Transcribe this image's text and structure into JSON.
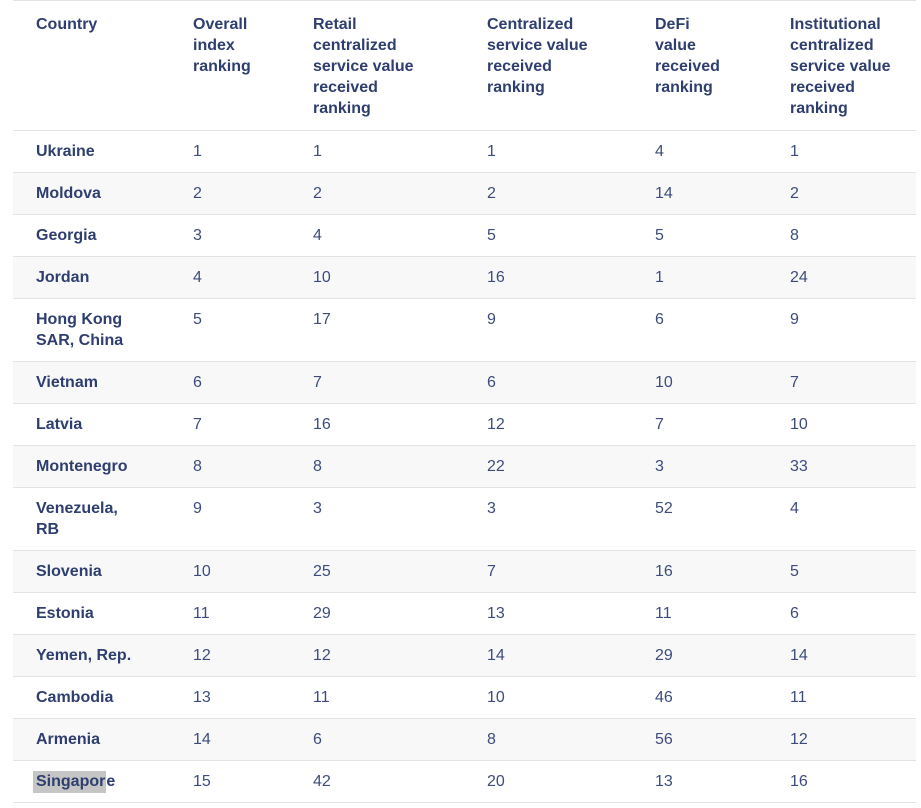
{
  "theme": {
    "text_color": "#2e3e6e",
    "number_color": "#3d4c7c",
    "stripe_color": "#f8f8f9",
    "border_color": "#e3e3e5",
    "highlight_color": "#c5c5c5"
  },
  "table": {
    "columns": [
      {
        "label_lines": [
          "Country"
        ]
      },
      {
        "label_lines": [
          "Overall",
          "index",
          "ranking"
        ]
      },
      {
        "label_lines": [
          "Retail",
          "centralized",
          "service value",
          "received",
          "ranking"
        ]
      },
      {
        "label_lines": [
          "Centralized",
          "service value",
          "received",
          "ranking"
        ]
      },
      {
        "label_lines": [
          "DeFi",
          "value",
          "received",
          "ranking"
        ]
      },
      {
        "label_lines": [
          "Institutional",
          "centralized",
          "service value",
          "received",
          "ranking"
        ]
      }
    ],
    "rows": [
      {
        "country_lines": [
          "Ukraine"
        ],
        "values": [
          1,
          1,
          1,
          4,
          1
        ]
      },
      {
        "country_lines": [
          "Moldova"
        ],
        "values": [
          2,
          2,
          2,
          14,
          2
        ]
      },
      {
        "country_lines": [
          "Georgia"
        ],
        "values": [
          3,
          4,
          5,
          5,
          8
        ]
      },
      {
        "country_lines": [
          "Jordan"
        ],
        "values": [
          4,
          10,
          16,
          1,
          24
        ]
      },
      {
        "country_lines": [
          "Hong Kong",
          "SAR, China"
        ],
        "values": [
          5,
          17,
          9,
          6,
          9
        ]
      },
      {
        "country_lines": [
          "Vietnam"
        ],
        "values": [
          6,
          7,
          6,
          10,
          7
        ]
      },
      {
        "country_lines": [
          "Latvia"
        ],
        "values": [
          7,
          16,
          12,
          7,
          10
        ]
      },
      {
        "country_lines": [
          "Montenegro"
        ],
        "values": [
          8,
          8,
          22,
          3,
          33
        ]
      },
      {
        "country_lines": [
          "Venezuela,",
          "RB"
        ],
        "values": [
          9,
          3,
          3,
          52,
          4
        ]
      },
      {
        "country_lines": [
          "Slovenia"
        ],
        "values": [
          10,
          25,
          7,
          16,
          5
        ]
      },
      {
        "country_lines": [
          "Estonia"
        ],
        "values": [
          11,
          29,
          13,
          11,
          6
        ]
      },
      {
        "country_lines": [
          "Yemen, Rep."
        ],
        "values": [
          12,
          12,
          14,
          29,
          14
        ]
      },
      {
        "country_lines": [
          "Cambodia"
        ],
        "values": [
          13,
          11,
          10,
          46,
          11
        ]
      },
      {
        "country_lines": [
          "Armenia"
        ],
        "values": [
          14,
          6,
          8,
          56,
          12
        ]
      },
      {
        "highlight_prefix": "Singapor",
        "country_rest": "e",
        "values": [
          15,
          42,
          20,
          13,
          16
        ]
      }
    ]
  }
}
